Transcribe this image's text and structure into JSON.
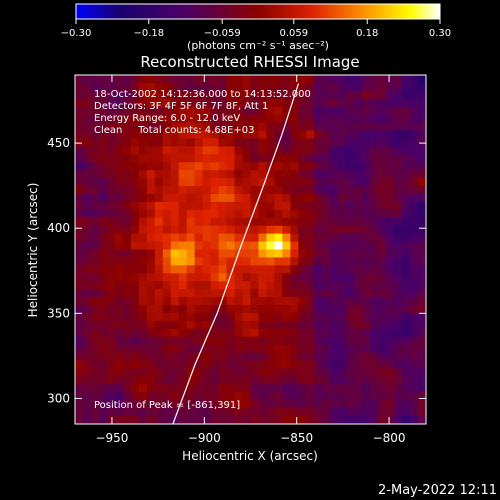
{
  "chart_data": {
    "type": "heatmap",
    "title": "Reconstructed RHESSI Image",
    "xlabel": "Heliocentric X (arcsec)",
    "ylabel": "Heliocentric Y (arcsec)",
    "xlim": [
      -970,
      -780
    ],
    "ylim": [
      285,
      490
    ],
    "x_ticks": [
      -950,
      -900,
      -850,
      -800
    ],
    "x_tick_labels": [
      "−950",
      "−900",
      "−850",
      "−800"
    ],
    "y_ticks": [
      300,
      350,
      400,
      450
    ],
    "y_tick_labels": [
      "300",
      "350",
      "400",
      "450"
    ],
    "colorbar": {
      "min": -0.3,
      "max": 0.3,
      "ticks": [
        -0.3,
        -0.18,
        -0.059,
        0.059,
        0.18,
        0.3
      ],
      "tick_labels": [
        "−0.30",
        "−0.18",
        "−0.059",
        "0.059",
        "0.18",
        "0.30"
      ],
      "units_label": "(photons cm⁻² s⁻¹ asec⁻²)",
      "colors": [
        "#0000ff",
        "#1a006e",
        "#4c0066",
        "#8a0000",
        "#dd2200",
        "#ff9900",
        "#ffff00",
        "#ffffff"
      ]
    },
    "annotations": [
      "18-Oct-2002 14:12:36.000 to 14:13:52.000",
      "Detectors: 3F 4F 5F 6F 7F 8F, Att 1",
      "Energy Range: 6.0 - 12.0 keV",
      "Clean     Total counts: 4.68E+03",
      "Position of Peak = [-861,391]"
    ],
    "peaks": [
      {
        "x": -861,
        "y": 391,
        "value": 0.3
      },
      {
        "x": -913,
        "y": 385,
        "value": 0.15
      }
    ],
    "limb_curve": [
      [
        -917,
        285
      ],
      [
        -905,
        320
      ],
      [
        -893,
        350
      ],
      [
        -880,
        390
      ],
      [
        -868,
        425
      ],
      [
        -858,
        455
      ],
      [
        -849,
        485
      ]
    ]
  },
  "footer": {
    "timestamp": "2-May-2022 12:11"
  }
}
